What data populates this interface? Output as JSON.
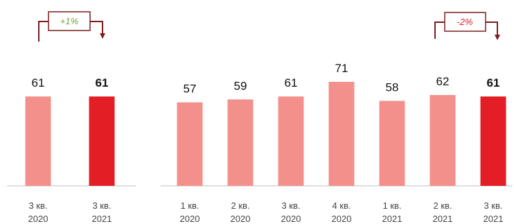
{
  "colors": {
    "bar_default": "#f4908c",
    "bar_highlight": "#e31e24",
    "axis": "#bfbfbf",
    "arrow": "#7b1c1c",
    "positive": "#77a03a",
    "negative": "#e31e24"
  },
  "chart_data": [
    {
      "type": "bar",
      "title": "",
      "xlabel": "",
      "ylabel": "",
      "ylim": [
        0,
        71
      ],
      "categories": [
        [
          "3 кв.",
          "2020"
        ],
        [
          "3 кв.",
          "2021"
        ]
      ],
      "values": [
        61,
        61
      ],
      "value_labels": [
        "61",
        "61"
      ],
      "highlight_index": 1,
      "change_label": "+1%",
      "change_sign": "positive"
    },
    {
      "type": "bar",
      "title": "",
      "xlabel": "",
      "ylabel": "",
      "ylim": [
        0,
        71
      ],
      "categories": [
        [
          "1 кв.",
          "2020"
        ],
        [
          "2 кв.",
          "2020"
        ],
        [
          "3 кв.",
          "2020"
        ],
        [
          "4 кв.",
          "2020"
        ],
        [
          "1 кв.",
          "2021"
        ],
        [
          "2 кв.",
          "2021"
        ],
        [
          "3 кв.",
          "2021"
        ]
      ],
      "values": [
        57,
        59,
        61,
        71,
        58,
        62,
        61
      ],
      "value_labels": [
        "57",
        "59",
        "61",
        "71",
        "58",
        "62",
        "61"
      ],
      "highlight_index": 6,
      "change_label": "-2%",
      "change_sign": "negative"
    }
  ]
}
